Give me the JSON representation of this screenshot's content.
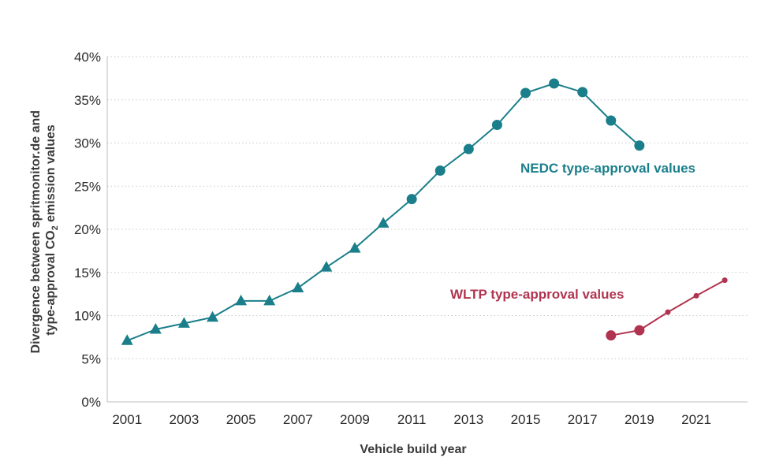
{
  "chart_data": {
    "type": "line",
    "ylabel_line1": "Divergence between spritmonitor.de and",
    "ylabel_line2_prefix": "type-approval CO",
    "ylabel_line2_sub": "2",
    "ylabel_line2_suffix": " emission values",
    "xlabel": "Vehicle build year",
    "ylim": [
      0,
      40
    ],
    "xlim": [
      2000.3,
      2022.8
    ],
    "y_ticks": [
      0,
      5,
      10,
      15,
      20,
      25,
      30,
      35,
      40
    ],
    "y_tick_labels": [
      "0%",
      "5%",
      "10%",
      "15%",
      "20%",
      "25%",
      "30%",
      "35%",
      "40%"
    ],
    "x_ticks": [
      2001,
      2003,
      2005,
      2007,
      2009,
      2011,
      2013,
      2015,
      2017,
      2019,
      2021
    ],
    "x_tick_labels": [
      "2001",
      "2003",
      "2005",
      "2007",
      "2009",
      "2011",
      "2013",
      "2015",
      "2017",
      "2019",
      "2021"
    ],
    "grid": true,
    "series": [
      {
        "name": "NEDC type-approval values",
        "color": "#1a7f8a",
        "x": [
          2001,
          2002,
          2003,
          2004,
          2005,
          2006,
          2007,
          2008,
          2009,
          2010,
          2011,
          2012,
          2013,
          2014,
          2015,
          2016,
          2017,
          2018,
          2019
        ],
        "values": [
          7.1,
          8.4,
          9.1,
          9.8,
          11.7,
          11.7,
          13.2,
          15.6,
          17.8,
          20.7,
          23.5,
          26.8,
          29.3,
          32.1,
          35.8,
          36.9,
          35.9,
          32.6,
          29.7
        ],
        "markers": [
          "triangle",
          "triangle",
          "triangle",
          "triangle",
          "triangle",
          "triangle",
          "triangle",
          "triangle",
          "triangle",
          "triangle",
          "circle",
          "circle",
          "circle",
          "circle",
          "circle",
          "circle",
          "circle",
          "circle",
          "circle"
        ],
        "marker_size": [
          "large",
          "large",
          "large",
          "large",
          "large",
          "large",
          "large",
          "large",
          "large",
          "large",
          "large",
          "large",
          "large",
          "large",
          "large",
          "large",
          "large",
          "large",
          "large"
        ]
      },
      {
        "name": "WLTP type-approval values",
        "color": "#b0344f",
        "x": [
          2018,
          2019,
          2020,
          2021,
          2022
        ],
        "values": [
          7.7,
          8.3,
          10.4,
          12.3,
          14.1
        ],
        "markers": [
          "circle",
          "circle",
          "circle",
          "circle",
          "circle"
        ],
        "marker_size": [
          "large",
          "large",
          "small",
          "small",
          "small"
        ]
      }
    ]
  }
}
